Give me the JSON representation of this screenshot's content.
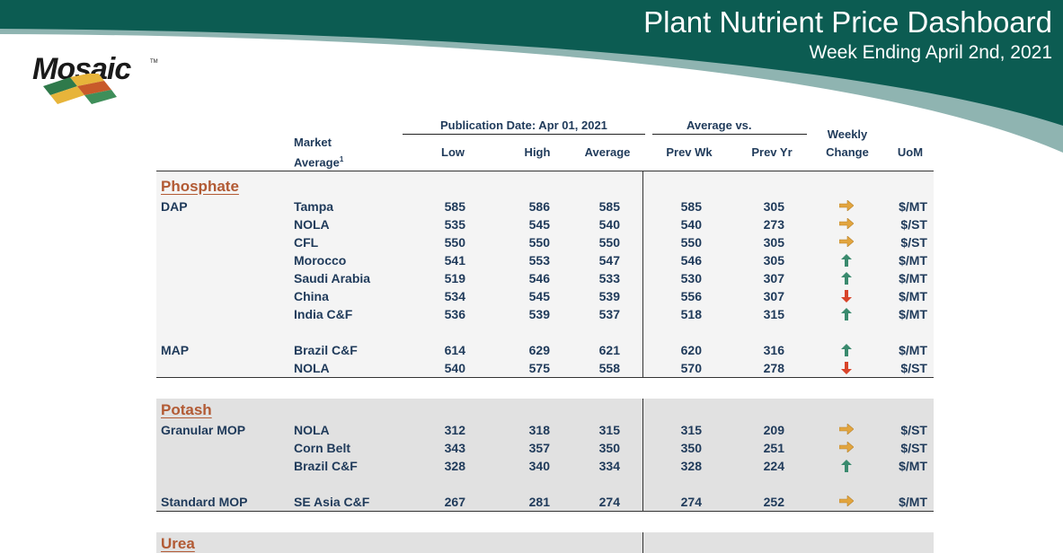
{
  "header": {
    "title": "Plant Nutrient Price Dashboard",
    "subtitle": "Week Ending April 2nd, 2021",
    "logo_text": "Mosaic",
    "logo_tm": "TM"
  },
  "colors": {
    "banner_teal": "#0c5c52",
    "banner_light": "#8fb4b1",
    "section_title": "#b25a34",
    "text_navy": "#1f3a5a",
    "arrow_up": "#3a8a6e",
    "arrow_down": "#d8442a",
    "arrow_flat": "#e2a53f"
  },
  "table": {
    "columns": {
      "publication": "Publication Date:  Apr 01, 2021",
      "average_vs": "Average  vs.",
      "market_average": "Market",
      "market_average_2": "Average",
      "market_sup": "1",
      "low": "Low",
      "high": "High",
      "average": "Average",
      "prev_wk": "Prev Wk",
      "prev_yr": "Prev Yr",
      "weekly": "Weekly",
      "change": "Change",
      "uom": "UoM"
    },
    "sections": [
      {
        "name": "Phosphate",
        "rows": [
          {
            "product": "DAP",
            "market": "Tampa",
            "low": "585",
            "high": "586",
            "avg": "585",
            "prev_wk": "585",
            "prev_yr": "305",
            "change": "flat",
            "uom": "$/MT"
          },
          {
            "product": "",
            "market": "NOLA",
            "low": "535",
            "high": "545",
            "avg": "540",
            "prev_wk": "540",
            "prev_yr": "273",
            "change": "flat",
            "uom": "$/ST"
          },
          {
            "product": "",
            "market": "CFL",
            "low": "550",
            "high": "550",
            "avg": "550",
            "prev_wk": "550",
            "prev_yr": "305",
            "change": "flat",
            "uom": "$/ST"
          },
          {
            "product": "",
            "market": "Morocco",
            "low": "541",
            "high": "553",
            "avg": "547",
            "prev_wk": "546",
            "prev_yr": "305",
            "change": "up",
            "uom": "$/MT"
          },
          {
            "product": "",
            "market": "Saudi Arabia",
            "low": "519",
            "high": "546",
            "avg": "533",
            "prev_wk": "530",
            "prev_yr": "307",
            "change": "up",
            "uom": "$/MT"
          },
          {
            "product": "",
            "market": "China",
            "low": "534",
            "high": "545",
            "avg": "539",
            "prev_wk": "556",
            "prev_yr": "307",
            "change": "down",
            "uom": "$/MT"
          },
          {
            "product": "",
            "market": "India C&F",
            "low": "536",
            "high": "539",
            "avg": "537",
            "prev_wk": "518",
            "prev_yr": "315",
            "change": "up",
            "uom": "$/MT"
          },
          {
            "product": "MAP",
            "market": "Brazil C&F",
            "low": "614",
            "high": "629",
            "avg": "621",
            "prev_wk": "620",
            "prev_yr": "316",
            "change": "up",
            "uom": "$/MT"
          },
          {
            "product": "",
            "market": "NOLA",
            "low": "540",
            "high": "575",
            "avg": "558",
            "prev_wk": "570",
            "prev_yr": "278",
            "change": "down",
            "uom": "$/ST"
          }
        ]
      },
      {
        "name": "Potash",
        "rows": [
          {
            "product": "Granular MOP",
            "market": "NOLA",
            "low": "312",
            "high": "318",
            "avg": "315",
            "prev_wk": "315",
            "prev_yr": "209",
            "change": "flat",
            "uom": "$/ST"
          },
          {
            "product": "",
            "market": "Corn Belt",
            "low": "343",
            "high": "357",
            "avg": "350",
            "prev_wk": "350",
            "prev_yr": "251",
            "change": "flat",
            "uom": "$/ST"
          },
          {
            "product": "",
            "market": "Brazil C&F",
            "low": "328",
            "high": "340",
            "avg": "334",
            "prev_wk": "328",
            "prev_yr": "224",
            "change": "up",
            "uom": "$/MT"
          },
          {
            "product": "Standard MOP",
            "market": "SE Asia C&F",
            "low": "267",
            "high": "281",
            "avg": "274",
            "prev_wk": "274",
            "prev_yr": "252",
            "change": "flat",
            "uom": "$/MT"
          }
        ]
      },
      {
        "name": "Urea",
        "rows": []
      }
    ]
  }
}
